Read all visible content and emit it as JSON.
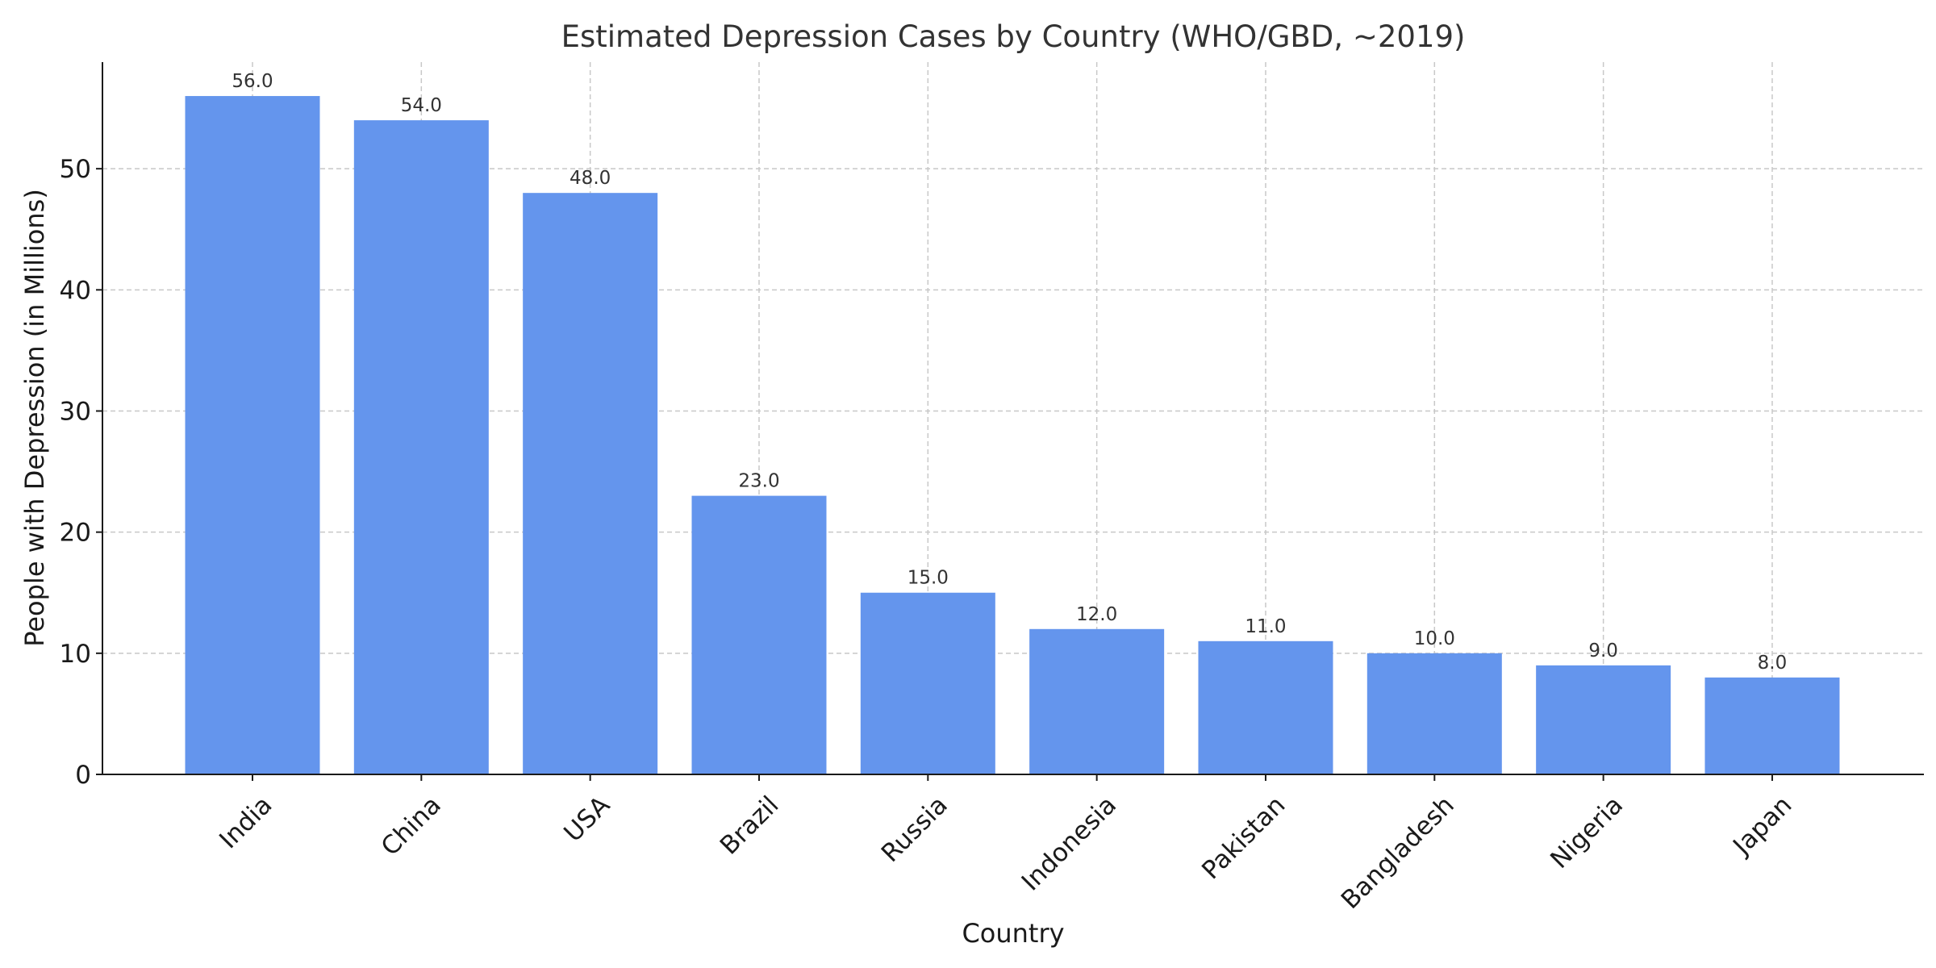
{
  "chart_data": {
    "type": "bar",
    "title": "Estimated Depression Cases by Country (WHO/GBD, ~2019)",
    "xlabel": "Country",
    "ylabel": "People with Depression (in Millions)",
    "categories": [
      "India",
      "China",
      "USA",
      "Brazil",
      "Russia",
      "Indonesia",
      "Pakistan",
      "Bangladesh",
      "Nigeria",
      "Japan"
    ],
    "values": [
      56.0,
      54.0,
      48.0,
      23.0,
      15.0,
      12.0,
      11.0,
      10.0,
      9.0,
      8.0
    ],
    "data_labels": [
      "56.0",
      "54.0",
      "48.0",
      "23.0",
      "15.0",
      "12.0",
      "11.0",
      "10.0",
      "9.0",
      "8.0"
    ],
    "ylim": [
      0,
      58.8
    ],
    "yticks": [
      0,
      10,
      20,
      30,
      40,
      50
    ],
    "grid": true,
    "legend": "none",
    "bar_color": "#6495ED",
    "grid_color": "#c8c8c8",
    "axis_color": "#1a1a1a"
  }
}
